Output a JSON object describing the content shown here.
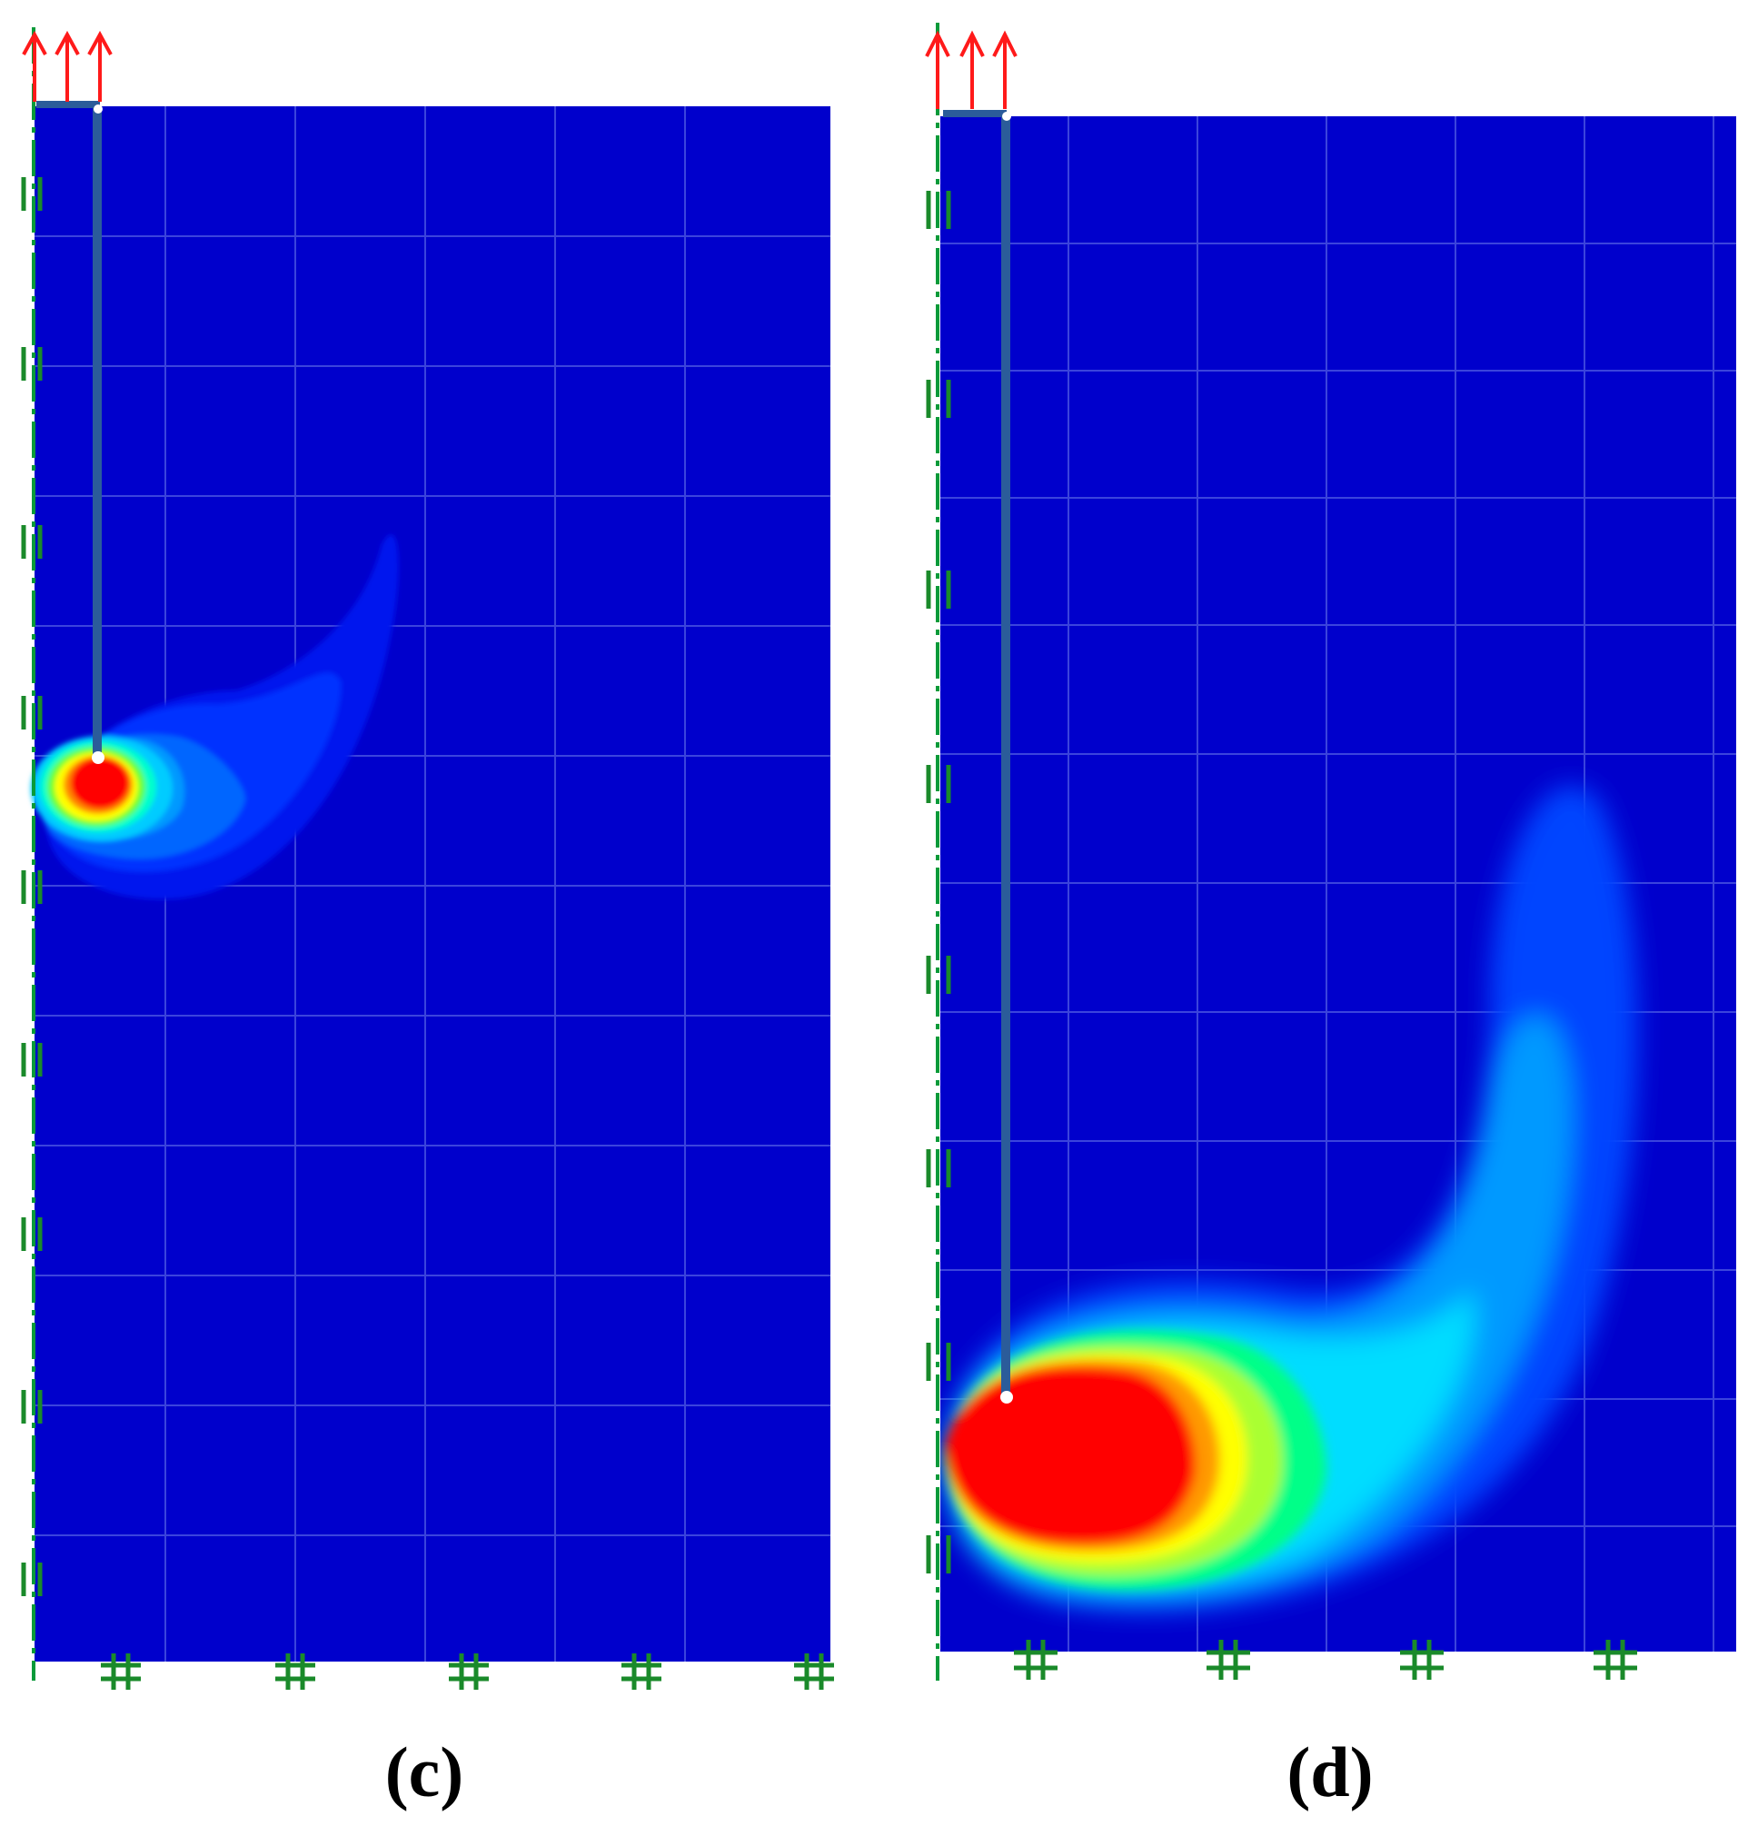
{
  "figure": {
    "panels": [
      {
        "id": "c",
        "caption": "(c)",
        "colors": {
          "background": "#0000cc",
          "grid": "#4a55e0",
          "anchor": "#2b5c9a",
          "boundary": "#0a9a3a",
          "support_mark": "#1a8a2a",
          "load_arrow": "#ff1a1a"
        },
        "colormap": [
          "#0000cc",
          "#0033ff",
          "#0088ff",
          "#00ccff",
          "#00ffcc",
          "#66ff33",
          "#ffff00",
          "#ff8800",
          "#ff0000"
        ]
      },
      {
        "id": "d",
        "caption": "(d)",
        "colors": {
          "background": "#0000cc",
          "grid": "#4a55e0",
          "anchor": "#2b5c9a",
          "boundary": "#0a9a3a",
          "support_mark": "#1a8a2a",
          "load_arrow": "#ff1a1a"
        },
        "colormap": [
          "#0000cc",
          "#0033ff",
          "#0088ff",
          "#00ccff",
          "#00ffcc",
          "#66ff33",
          "#ffff00",
          "#ff8800",
          "#ff0000"
        ]
      }
    ]
  }
}
